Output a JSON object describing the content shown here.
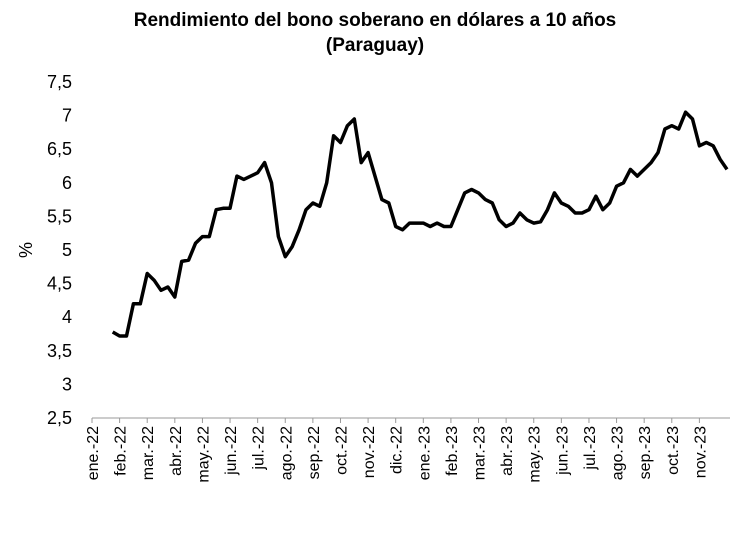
{
  "chart_data": {
    "type": "line",
    "title": [
      "Rendimiento del bono soberano en dólares a 10 años",
      "(Paraguay)"
    ],
    "y_label": "%",
    "categories": [
      "ene.-22",
      null,
      null,
      null,
      "feb.-22",
      null,
      null,
      null,
      "mar.-22",
      null,
      null,
      null,
      "abr.-22",
      null,
      null,
      null,
      "may.-22",
      null,
      null,
      null,
      "jun.-22",
      null,
      null,
      null,
      "jul.-22",
      null,
      null,
      null,
      "ago.-22",
      null,
      null,
      null,
      "sep.-22",
      null,
      null,
      null,
      "oct.-22",
      null,
      null,
      null,
      "nov.-22",
      null,
      null,
      null,
      "dic.-22",
      null,
      null,
      null,
      "ene.-23",
      null,
      null,
      null,
      "feb.-23",
      null,
      null,
      null,
      "mar.-23",
      null,
      null,
      null,
      "abr.-23",
      null,
      null,
      null,
      "may.-23",
      null,
      null,
      null,
      "jun.-23",
      null,
      null,
      null,
      "jul.-23",
      null,
      null,
      null,
      "ago.-23",
      null,
      null,
      null,
      "sep.-23",
      null,
      null,
      null,
      "oct.-23",
      null,
      null,
      null,
      "nov.-23",
      null,
      null,
      null,
      null
    ],
    "series": [
      {
        "name": "Rendimiento",
        "color": "#000000",
        "values": [
          null,
          null,
          null,
          3.78,
          3.72,
          3.72,
          4.2,
          4.2,
          4.65,
          4.55,
          4.4,
          4.45,
          4.3,
          4.83,
          4.85,
          5.1,
          5.2,
          5.2,
          5.6,
          5.62,
          5.62,
          6.1,
          6.05,
          6.1,
          6.15,
          6.3,
          6.0,
          5.2,
          4.9,
          5.05,
          5.3,
          5.6,
          5.7,
          5.65,
          6.0,
          6.7,
          6.6,
          6.85,
          6.95,
          6.3,
          6.45,
          6.1,
          5.75,
          5.7,
          5.35,
          5.3,
          5.4,
          5.4,
          5.4,
          5.35,
          5.4,
          5.35,
          5.35,
          5.6,
          5.85,
          5.9,
          5.85,
          5.75,
          5.7,
          5.45,
          5.35,
          5.4,
          5.55,
          5.45,
          5.4,
          5.42,
          5.6,
          5.85,
          5.7,
          5.65,
          5.55,
          5.55,
          5.6,
          5.8,
          5.6,
          5.7,
          5.95,
          6.0,
          6.2,
          6.1,
          6.2,
          6.3,
          6.45,
          6.8,
          6.85,
          6.8,
          7.05,
          6.95,
          6.55,
          6.6,
          6.55,
          6.35,
          6.2
        ]
      }
    ],
    "ylim": [
      2.5,
      7.5
    ],
    "yticks": [
      {
        "value": 2.5,
        "label": "2,5"
      },
      3,
      {
        "value": 3.5,
        "label": "3,5"
      },
      4,
      {
        "value": 4.5,
        "label": "4,5"
      },
      5,
      {
        "value": 5.5,
        "label": "5,5"
      },
      6,
      {
        "value": 6.5,
        "label": "6,5"
      },
      7,
      {
        "value": 7.5,
        "label": "7,5"
      }
    ],
    "grid": false
  }
}
